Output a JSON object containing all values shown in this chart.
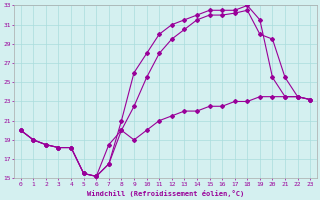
{
  "xlabel": "Windchill (Refroidissement éolien,°C)",
  "bg_color": "#d4f0f0",
  "grid_color": "#aadddd",
  "line_color": "#990099",
  "xlim": [
    -0.5,
    23.5
  ],
  "ylim": [
    15,
    33
  ],
  "xticks": [
    0,
    1,
    2,
    3,
    4,
    5,
    6,
    7,
    8,
    9,
    10,
    11,
    12,
    13,
    14,
    15,
    16,
    17,
    18,
    19,
    20,
    21,
    22,
    23
  ],
  "yticks": [
    15,
    17,
    19,
    21,
    23,
    25,
    27,
    29,
    31,
    33
  ],
  "line1_x": [
    0,
    1,
    2,
    3,
    4,
    5,
    6,
    7,
    8,
    9,
    10,
    11,
    12,
    13,
    14,
    15,
    16,
    17,
    18,
    19,
    20,
    21,
    22,
    23
  ],
  "line1_y": [
    20.0,
    19.0,
    18.5,
    18.2,
    18.2,
    15.5,
    15.2,
    18.5,
    20.0,
    19.0,
    20.0,
    21.0,
    21.5,
    22.0,
    22.0,
    22.5,
    22.5,
    23.0,
    23.0,
    23.5,
    23.5,
    23.5,
    23.5,
    23.2
  ],
  "line2_x": [
    0,
    1,
    2,
    3,
    4,
    5,
    6,
    7,
    8,
    9,
    10,
    11,
    12,
    13,
    14,
    15,
    16,
    17,
    18,
    19,
    20,
    21,
    22,
    23
  ],
  "line2_y": [
    20.0,
    19.0,
    18.5,
    18.2,
    18.2,
    15.5,
    15.2,
    16.5,
    21.0,
    26.0,
    28.0,
    30.0,
    31.0,
    31.5,
    32.0,
    32.5,
    32.5,
    32.5,
    33.0,
    31.5,
    25.5,
    23.5,
    23.5,
    23.2
  ],
  "line3_x": [
    0,
    1,
    2,
    3,
    4,
    5,
    6,
    7,
    8,
    9,
    10,
    11,
    12,
    13,
    14,
    15,
    16,
    17,
    18,
    19,
    20,
    21,
    22,
    23
  ],
  "line3_y": [
    20.0,
    19.0,
    18.5,
    18.2,
    18.2,
    15.5,
    15.2,
    16.5,
    20.0,
    22.5,
    25.5,
    28.0,
    29.5,
    30.5,
    31.5,
    32.0,
    32.0,
    32.2,
    32.5,
    30.0,
    29.5,
    25.5,
    23.5,
    23.2
  ],
  "marker": "D",
  "markersize": 2.0,
  "linewidth": 0.8
}
